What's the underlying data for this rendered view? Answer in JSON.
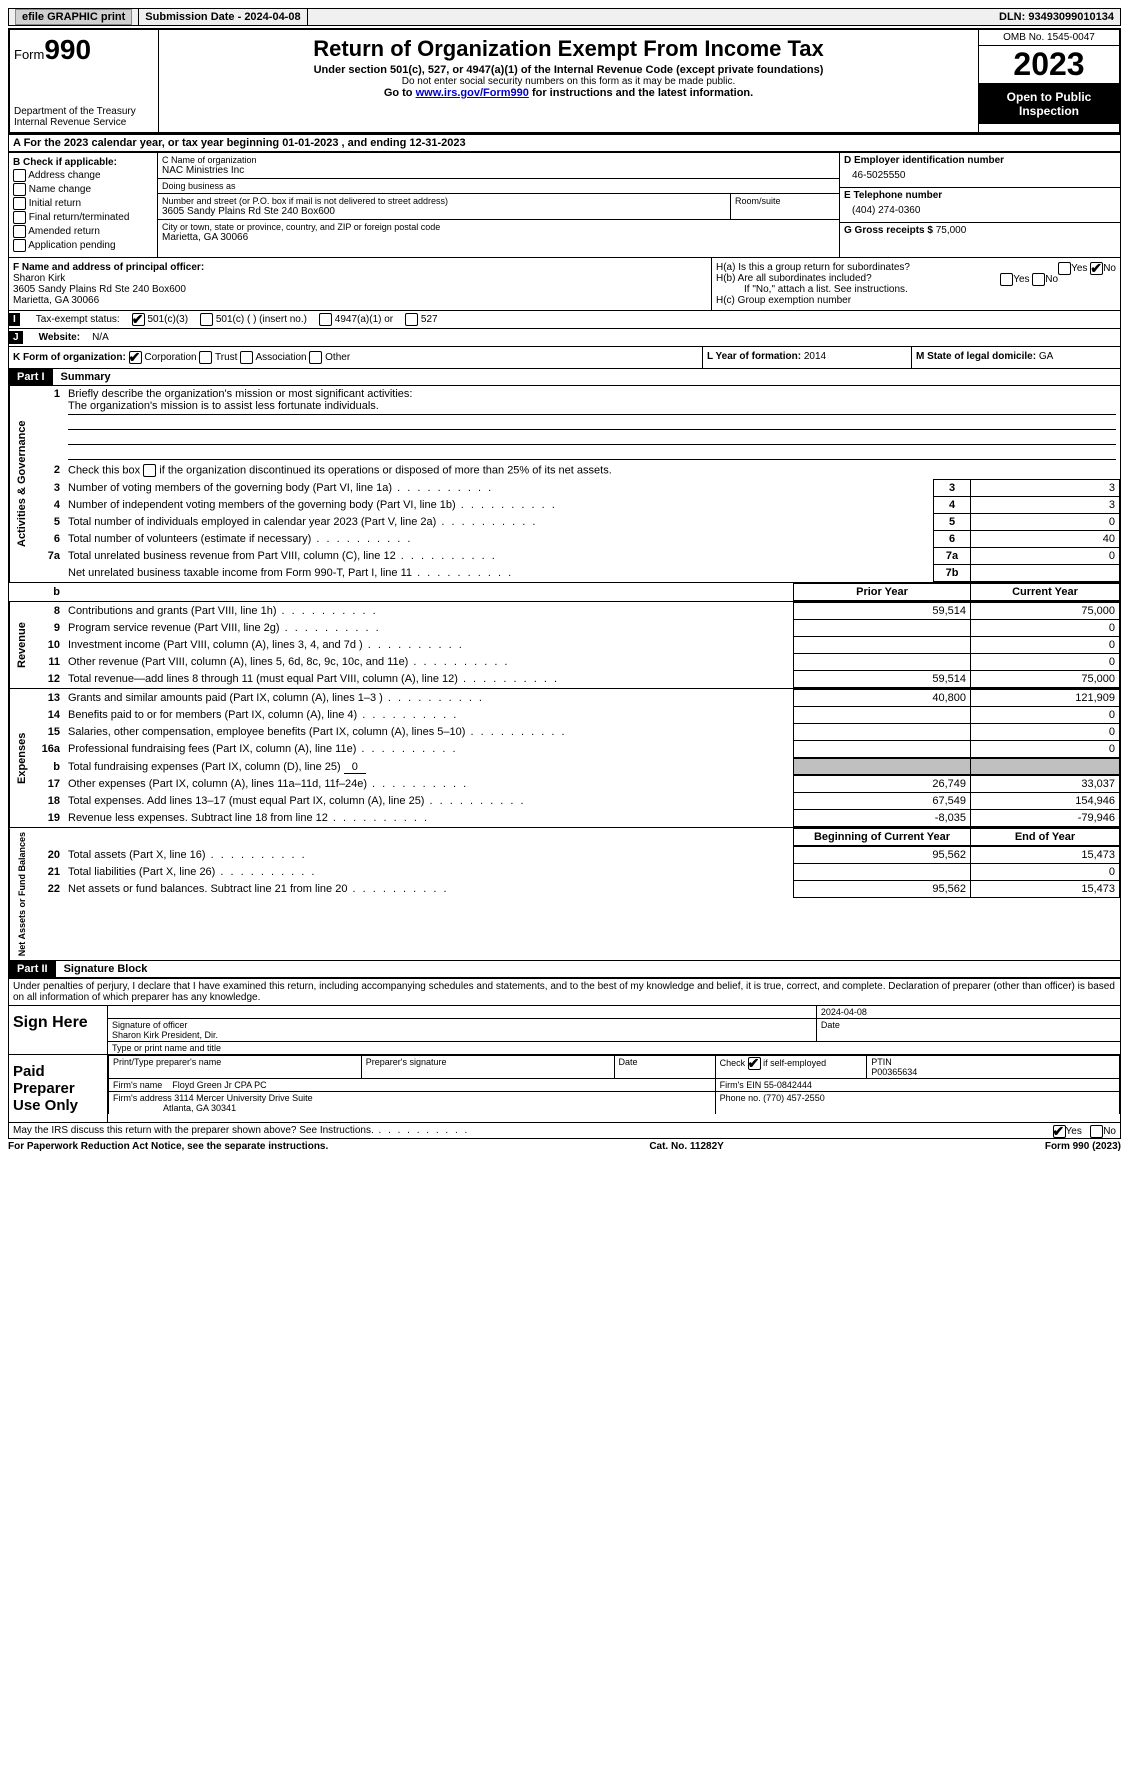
{
  "topbar": {
    "efile": "efile GRAPHIC print",
    "submission": "Submission Date - 2024-04-08",
    "dln": "DLN: 93493099010134"
  },
  "header": {
    "form_word": "Form",
    "form_num": "990",
    "title": "Return of Organization Exempt From Income Tax",
    "subtitle": "Under section 501(c), 527, or 4947(a)(1) of the Internal Revenue Code (except private foundations)",
    "note": "Do not enter social security numbers on this form as it may be made public.",
    "goto_pre": "Go to ",
    "goto_link": "www.irs.gov/Form990",
    "goto_post": " for instructions and the latest information.",
    "dept": "Department of the Treasury\nInternal Revenue Service",
    "omb": "OMB No. 1545-0047",
    "year": "2023",
    "open": "Open to Public Inspection"
  },
  "sectionA": "A  For the 2023 calendar year, or tax year beginning 01-01-2023    , and ending 12-31-2023",
  "colB": {
    "label": "B Check if applicable:",
    "opts": [
      "Address change",
      "Name change",
      "Initial return",
      "Final return/terminated",
      "Amended return",
      "Application pending"
    ]
  },
  "colC": {
    "name_label": "C Name of organization",
    "name": "NAC Ministries Inc",
    "dba_label": "Doing business as",
    "dba": "",
    "street_label": "Number and street (or P.O. box if mail is not delivered to street address)",
    "street": "3605 Sandy Plains Rd Ste 240 Box600",
    "room_label": "Room/suite",
    "room": "",
    "city_label": "City or town, state or province, country, and ZIP or foreign postal code",
    "city": "Marietta, GA  30066"
  },
  "colDE": {
    "d_label": "D Employer identification number",
    "d_val": "46-5025550",
    "e_label": "E Telephone number",
    "e_val": "(404) 274-0360",
    "g_label": "G Gross receipts $",
    "g_val": "75,000"
  },
  "rowF": {
    "f_label": "F  Name and address of principal officer:",
    "f_name": "Sharon Kirk",
    "f_addr1": "3605 Sandy Plains Rd Ste 240 Box600",
    "f_addr2": "Marietta, GA  30066",
    "ha_label": "H(a)  Is this a group return for subordinates?",
    "hb_label": "H(b)  Are all subordinates included?",
    "hb_note": "If \"No,\" attach a list. See instructions.",
    "hc_label": "H(c)  Group exemption number",
    "yes": "Yes",
    "no": "No"
  },
  "status": {
    "i_label": "I",
    "i_text": "Tax-exempt status:",
    "opt1": "501(c)(3)",
    "opt2": "501(c) (  ) (insert no.)",
    "opt3": "4947(a)(1) or",
    "opt4": "527",
    "j_label": "J",
    "j_text": "Website:",
    "j_val": "N/A"
  },
  "korg": {
    "k_label": "K Form of organization:",
    "opts": [
      "Corporation",
      "Trust",
      "Association",
      "Other"
    ],
    "l_label": "L Year of formation:",
    "l_val": "2014",
    "m_label": "M State of legal domicile:",
    "m_val": "GA"
  },
  "part1": {
    "label": "Part I",
    "title": "Summary"
  },
  "governance": {
    "side": "Activities & Governance",
    "l1": "Briefly describe the organization's mission or most significant activities:",
    "l1_val": "The organization's mission is to assist less fortunate individuals.",
    "l2": "Check this box          if the organization discontinued its operations or disposed of more than 25% of its net assets.",
    "rows": [
      {
        "n": "3",
        "t": "Number of voting members of the governing body (Part VI, line 1a)",
        "ln": "3",
        "v": "3"
      },
      {
        "n": "4",
        "t": "Number of independent voting members of the governing body (Part VI, line 1b)",
        "ln": "4",
        "v": "3"
      },
      {
        "n": "5",
        "t": "Total number of individuals employed in calendar year 2023 (Part V, line 2a)",
        "ln": "5",
        "v": "0"
      },
      {
        "n": "6",
        "t": "Total number of volunteers (estimate if necessary)",
        "ln": "6",
        "v": "40"
      },
      {
        "n": "7a",
        "t": "Total unrelated business revenue from Part VIII, column (C), line 12",
        "ln": "7a",
        "v": "0"
      },
      {
        "n": "",
        "t": "Net unrelated business taxable income from Form 990-T, Part I, line 11",
        "ln": "7b",
        "v": ""
      }
    ]
  },
  "col_headers": {
    "b": "b",
    "prior": "Prior Year",
    "current": "Current Year"
  },
  "revenue": {
    "side": "Revenue",
    "rows": [
      {
        "n": "8",
        "t": "Contributions and grants (Part VIII, line 1h)",
        "p": "59,514",
        "c": "75,000"
      },
      {
        "n": "9",
        "t": "Program service revenue (Part VIII, line 2g)",
        "p": "",
        "c": "0"
      },
      {
        "n": "10",
        "t": "Investment income (Part VIII, column (A), lines 3, 4, and 7d )",
        "p": "",
        "c": "0"
      },
      {
        "n": "11",
        "t": "Other revenue (Part VIII, column (A), lines 5, 6d, 8c, 9c, 10c, and 11e)",
        "p": "",
        "c": "0"
      },
      {
        "n": "12",
        "t": "Total revenue—add lines 8 through 11 (must equal Part VIII, column (A), line 12)",
        "p": "59,514",
        "c": "75,000"
      }
    ]
  },
  "expenses": {
    "side": "Expenses",
    "rows": [
      {
        "n": "13",
        "t": "Grants and similar amounts paid (Part IX, column (A), lines 1–3 )",
        "p": "40,800",
        "c": "121,909"
      },
      {
        "n": "14",
        "t": "Benefits paid to or for members (Part IX, column (A), line 4)",
        "p": "",
        "c": "0"
      },
      {
        "n": "15",
        "t": "Salaries, other compensation, employee benefits (Part IX, column (A), lines 5–10)",
        "p": "",
        "c": "0"
      },
      {
        "n": "16a",
        "t": "Professional fundraising fees (Part IX, column (A), line 11e)",
        "p": "",
        "c": "0"
      }
    ],
    "l16b_n": "b",
    "l16b": "Total fundraising expenses (Part IX, column (D), line 25)",
    "l16b_val": "0",
    "rows2": [
      {
        "n": "17",
        "t": "Other expenses (Part IX, column (A), lines 11a–11d, 11f–24e)",
        "p": "26,749",
        "c": "33,037"
      },
      {
        "n": "18",
        "t": "Total expenses. Add lines 13–17 (must equal Part IX, column (A), line 25)",
        "p": "67,549",
        "c": "154,946"
      },
      {
        "n": "19",
        "t": "Revenue less expenses. Subtract line 18 from line 12",
        "p": "-8,035",
        "c": "-79,946"
      }
    ]
  },
  "netassets": {
    "side": "Net Assets or Fund Balances",
    "h_begin": "Beginning of Current Year",
    "h_end": "End of Year",
    "rows": [
      {
        "n": "20",
        "t": "Total assets (Part X, line 16)",
        "p": "95,562",
        "c": "15,473"
      },
      {
        "n": "21",
        "t": "Total liabilities (Part X, line 26)",
        "p": "",
        "c": "0"
      },
      {
        "n": "22",
        "t": "Net assets or fund balances. Subtract line 21 from line 20",
        "p": "95,562",
        "c": "15,473"
      }
    ]
  },
  "part2": {
    "label": "Part II",
    "title": "Signature Block"
  },
  "sig": {
    "declare": "Under penalties of perjury, I declare that I have examined this return, including accompanying schedules and statements, and to the best of my knowledge and belief, it is true, correct, and complete. Declaration of preparer (other than officer) is based on all information of which preparer has any knowledge.",
    "sign_here": "Sign Here",
    "sig_officer": "Signature of officer",
    "date_label": "Date",
    "date_val": "2024-04-08",
    "officer_name": "Sharon Kirk  President, Dir.",
    "type_name": "Type or print name and title",
    "paid": "Paid Preparer Use Only",
    "print_name_label": "Print/Type preparer's name",
    "print_name": "",
    "prep_sig_label": "Preparer's signature",
    "prep_date_label": "Date",
    "check_label": "Check",
    "check_if": "if self-employed",
    "ptin_label": "PTIN",
    "ptin": "P00365634",
    "firm_name_label": "Firm's name",
    "firm_name": "Floyd Green Jr CPA PC",
    "firm_ein_label": "Firm's EIN",
    "firm_ein": "55-0842444",
    "firm_addr_label": "Firm's address",
    "firm_addr1": "3114 Mercer University Drive Suite",
    "firm_addr2": "Atlanta, GA  30341",
    "phone_label": "Phone no.",
    "phone": "(770) 457-2550",
    "discuss": "May the IRS discuss this return with the preparer shown above? See Instructions.",
    "yes": "Yes",
    "no": "No"
  },
  "footer": {
    "left": "For Paperwork Reduction Act Notice, see the separate instructions.",
    "center": "Cat. No. 11282Y",
    "right": "Form 990 (2023)"
  }
}
